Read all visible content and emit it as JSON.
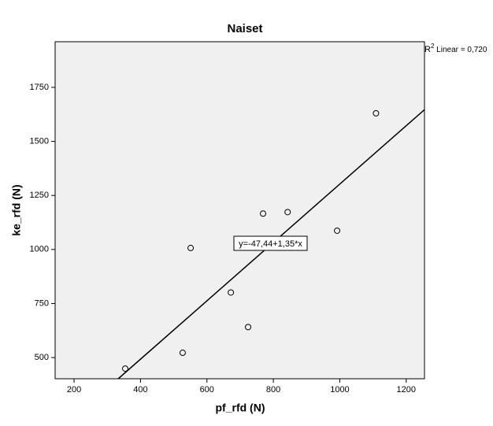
{
  "chart_data": {
    "type": "scatter",
    "title": "Naiset",
    "x_label": "pf_rfd (N)",
    "y_label": "ke_rfd (N)",
    "x": [
      354,
      527,
      551,
      672,
      724,
      769,
      843,
      992,
      1109
    ],
    "values": [
      449,
      522,
      1007,
      801,
      641,
      1166,
      1173,
      1087,
      1630
    ],
    "xlim": [
      143,
      1255
    ],
    "ylim": [
      402,
      1961
    ],
    "xticks": [
      200,
      400,
      600,
      800,
      1000,
      1200
    ],
    "yticks": [
      500,
      750,
      1000,
      1250,
      1500,
      1750
    ],
    "fit": {
      "intercept": -47.44,
      "slope": 1.35,
      "label": "y=-47,44+1,35*x"
    },
    "r2_label": {
      "base": "R",
      "sup": "2",
      "rest": " Linear = 0,720"
    }
  }
}
